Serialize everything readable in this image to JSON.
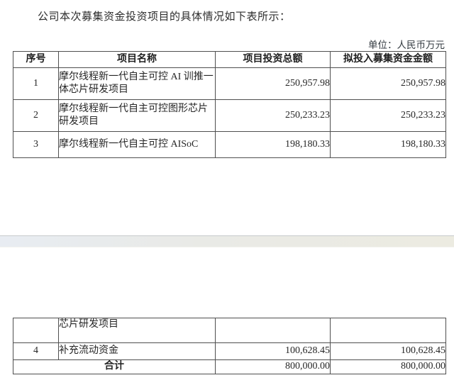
{
  "page": {
    "title": "公司本次募集资金投资项目的具体情况如下表所示：",
    "unit_label": "单位：人民币万元"
  },
  "table": {
    "headers": {
      "no": "序号",
      "name": "项目名称",
      "total": "项目投资总额",
      "raised": "拟投入募集资金金额"
    },
    "rows": [
      {
        "no": "1",
        "name": "摩尔线程新一代自主可控 AI 训推一体芯片研发项目",
        "total": "250,957.98",
        "raised": "250,957.98"
      },
      {
        "no": "2",
        "name": "摩尔线程新一代自主可控图形芯片研发项目",
        "total": "250,233.23",
        "raised": "250,233.23"
      },
      {
        "no": "3",
        "name": "摩尔线程新一代自主可控 AISoC",
        "total": "198,180.33",
        "raised": "198,180.33"
      }
    ]
  },
  "table_continued": {
    "carryover_name": "芯片研发项目",
    "rows": [
      {
        "no": "4",
        "name": "补充流动资金",
        "total": "100,628.45",
        "raised": "100,628.45"
      }
    ],
    "total_row": {
      "label": "合计",
      "total": "800,000.00",
      "raised": "800,000.00"
    }
  }
}
